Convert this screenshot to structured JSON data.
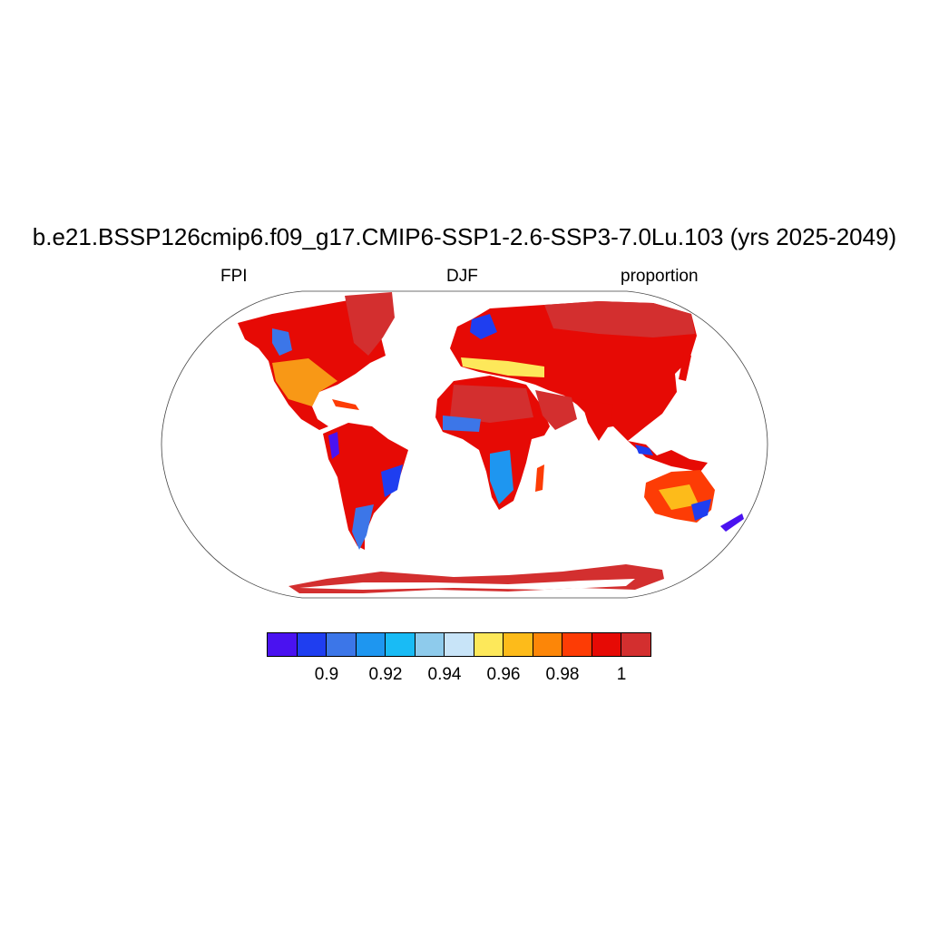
{
  "title": "b.e21.BSSP126cmip6.f09_g17.CMIP6-SSP1-2.6-SSP3-7.0Lu.103 (yrs 2025-2049)",
  "left_string": "FPI",
  "center_string": "DJF",
  "right_string": "proportion",
  "map": {
    "projection": "Robinson",
    "ocean_color": "#ffffff",
    "land_missing_color": "#ffffff"
  },
  "colorbar": {
    "colors": [
      "#4a12f0",
      "#1f3ef0",
      "#3c76e8",
      "#1e96f0",
      "#19bbf5",
      "#8ecbec",
      "#c8e4f8",
      "#fde85a",
      "#fdbb1a",
      "#fc8608",
      "#fd3c05",
      "#e60a05",
      "#d32f2f"
    ],
    "tick_labels": [
      "0.9",
      "0.92",
      "0.94",
      "0.96",
      "0.98",
      "1"
    ]
  }
}
